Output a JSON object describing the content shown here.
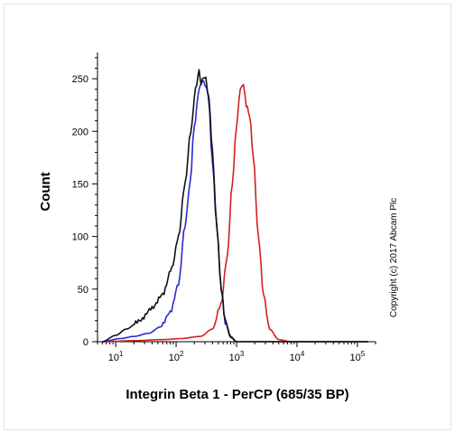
{
  "chart_data": {
    "type": "line",
    "xlabel": "Integrin Beta 1 - PerCP (685/35 BP)",
    "ylabel": "Count",
    "xscale": "log",
    "xlim": [
      5,
      200000
    ],
    "ylim": [
      0,
      275
    ],
    "yticks": [
      0,
      50,
      100,
      150,
      200,
      250
    ],
    "xticks": [
      {
        "value": 10,
        "base": "10",
        "exp": "1"
      },
      {
        "value": 100,
        "base": "10",
        "exp": "2"
      },
      {
        "value": 1000,
        "base": "10",
        "exp": "3"
      },
      {
        "value": 10000,
        "base": "10",
        "exp": "4"
      },
      {
        "value": 100000,
        "base": "10",
        "exp": "5"
      }
    ],
    "grid": false,
    "series": [
      {
        "color": "#d42020",
        "points": [
          [
            6,
            0
          ],
          [
            20,
            1
          ],
          [
            60,
            2
          ],
          [
            120,
            3
          ],
          [
            250,
            5
          ],
          [
            400,
            12
          ],
          [
            550,
            35
          ],
          [
            700,
            80
          ],
          [
            850,
            150
          ],
          [
            1000,
            205
          ],
          [
            1150,
            240
          ],
          [
            1300,
            245
          ],
          [
            1450,
            225
          ],
          [
            1650,
            215
          ],
          [
            1900,
            175
          ],
          [
            2300,
            100
          ],
          [
            2800,
            45
          ],
          [
            3500,
            12
          ],
          [
            5000,
            2
          ],
          [
            8000,
            0
          ],
          [
            150000,
            0
          ]
        ]
      },
      {
        "color": "#2a2ad6",
        "points": [
          [
            6,
            0
          ],
          [
            12,
            3
          ],
          [
            20,
            5
          ],
          [
            35,
            8
          ],
          [
            55,
            14
          ],
          [
            80,
            28
          ],
          [
            110,
            55
          ],
          [
            140,
            110
          ],
          [
            170,
            150
          ],
          [
            200,
            205
          ],
          [
            240,
            240
          ],
          [
            270,
            248
          ],
          [
            300,
            245
          ],
          [
            340,
            235
          ],
          [
            400,
            170
          ],
          [
            470,
            110
          ],
          [
            560,
            50
          ],
          [
            650,
            18
          ],
          [
            800,
            4
          ],
          [
            1000,
            0
          ],
          [
            150000,
            0
          ]
        ]
      },
      {
        "color": "#111111",
        "points": [
          [
            6,
            0
          ],
          [
            10,
            6
          ],
          [
            15,
            12
          ],
          [
            25,
            20
          ],
          [
            40,
            32
          ],
          [
            60,
            45
          ],
          [
            85,
            70
          ],
          [
            110,
            100
          ],
          [
            140,
            150
          ],
          [
            175,
            200
          ],
          [
            210,
            240
          ],
          [
            240,
            257
          ],
          [
            260,
            245
          ],
          [
            285,
            252
          ],
          [
            310,
            250
          ],
          [
            350,
            230
          ],
          [
            400,
            180
          ],
          [
            470,
            110
          ],
          [
            560,
            50
          ],
          [
            650,
            20
          ],
          [
            800,
            5
          ],
          [
            1000,
            0
          ],
          [
            150000,
            0
          ]
        ]
      }
    ]
  },
  "watermark": "Copyright (c) 2017 Abcam Plc"
}
